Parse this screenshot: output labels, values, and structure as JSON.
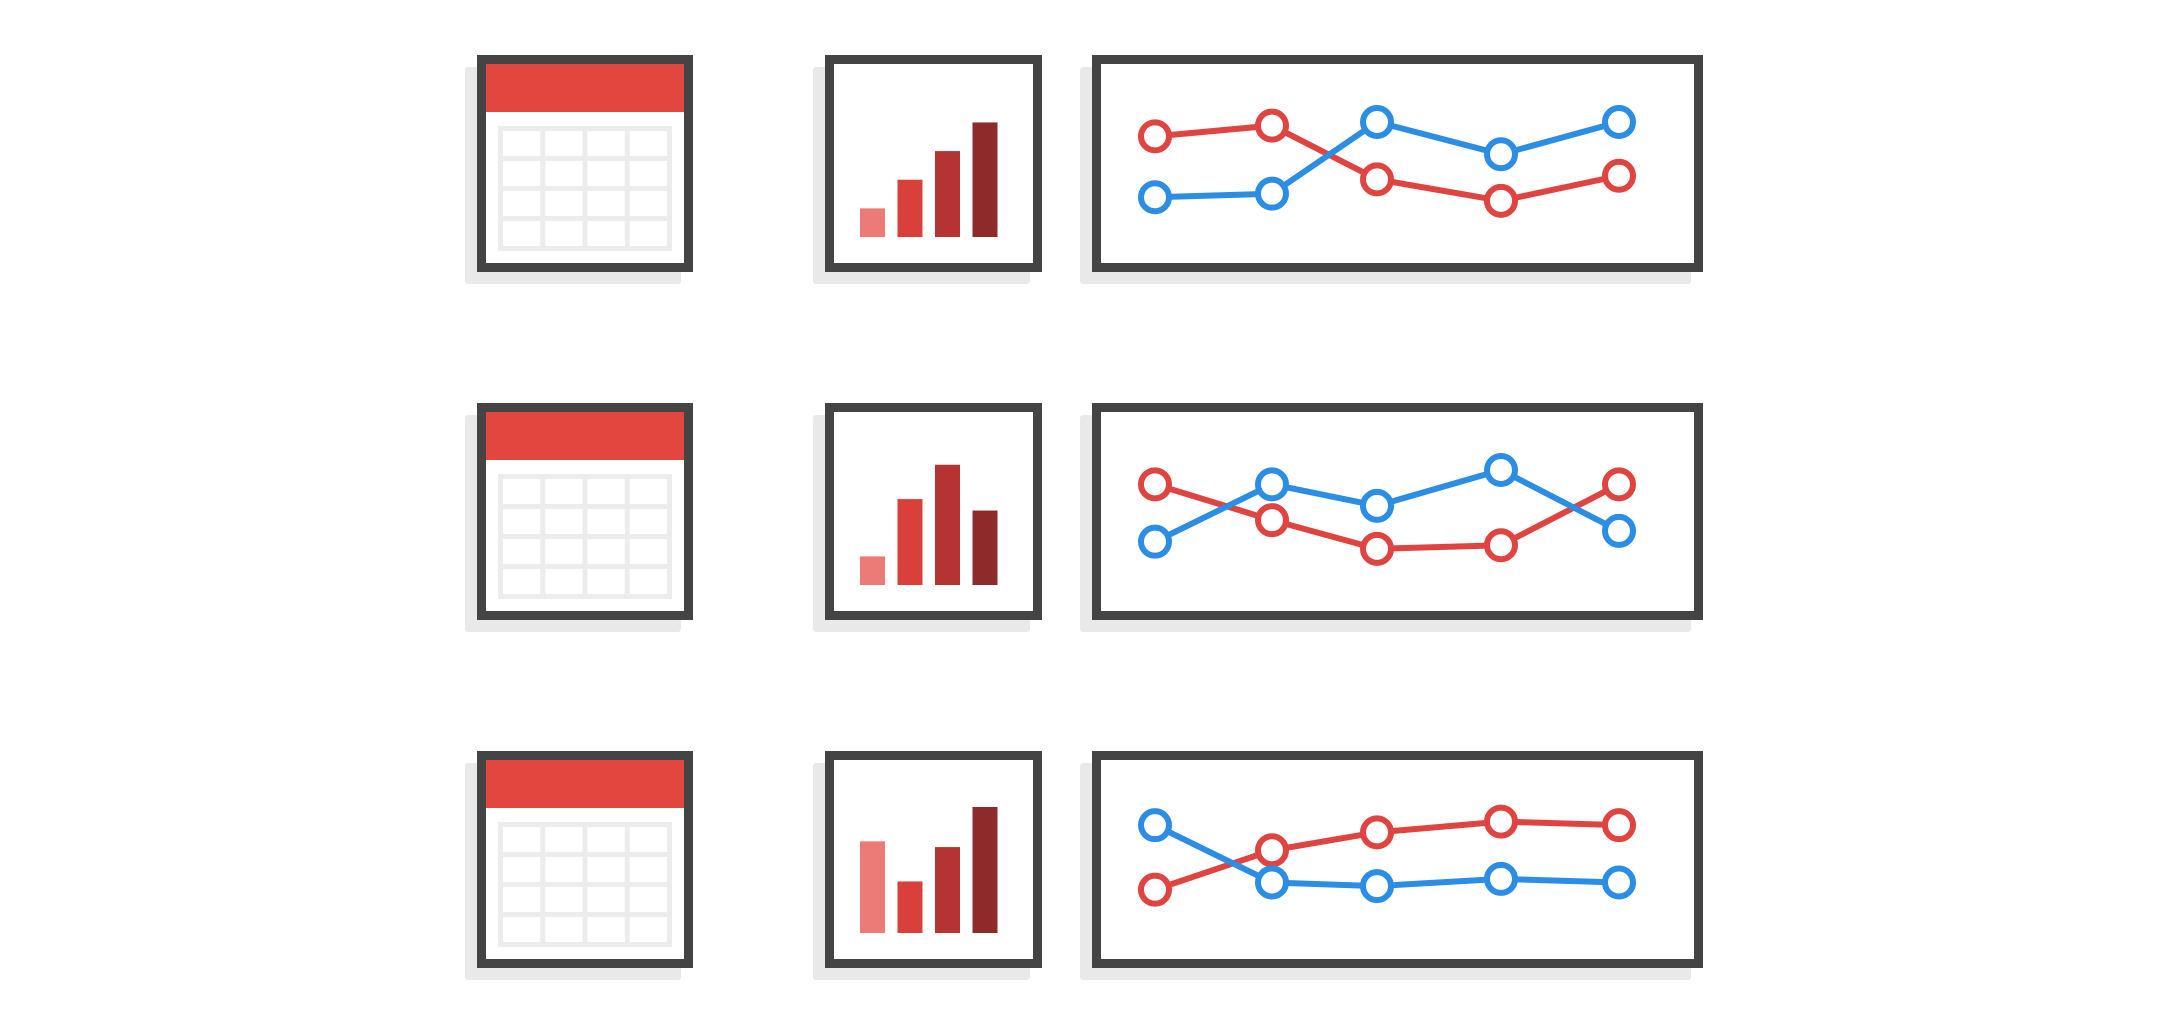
{
  "colors": {
    "frame": "#444444",
    "shadow": "#e9e9e9",
    "calendar_header": "#e2463f",
    "calendar_grid": "#ececec",
    "bar_shades": [
      "#ec7a77",
      "#d9403a",
      "#b53431",
      "#8d2a2a"
    ],
    "series_red": "#e04440",
    "series_blue": "#2b8de4"
  },
  "icons": {
    "calendar": "calendar-icon",
    "bar_chart": "bar-chart-icon",
    "line_chart": "line-chart-icon"
  },
  "calendar": {
    "columns": 4,
    "rows": 4
  },
  "rows": [
    {
      "bar_chart": {
        "type": "bar",
        "values": [
          1,
          2,
          3,
          4
        ]
      },
      "line_chart": {
        "type": "line",
        "series": [
          {
            "color": "red",
            "values": [
              2.0,
              2.3,
              0.8,
              0.2,
              0.9
            ]
          },
          {
            "color": "blue",
            "values": [
              0.3,
              0.4,
              2.4,
              1.5,
              2.4
            ]
          }
        ]
      }
    },
    {
      "bar_chart": {
        "type": "bar",
        "values": [
          1,
          3,
          4.2,
          2.6
        ]
      },
      "line_chart": {
        "type": "line",
        "series": [
          {
            "color": "red",
            "values": [
              2.0,
              1.0,
              0.2,
              0.3,
              2.0
            ]
          },
          {
            "color": "blue",
            "values": [
              0.4,
              2.0,
              1.4,
              2.4,
              0.7
            ]
          }
        ]
      }
    },
    {
      "bar_chart": {
        "type": "bar",
        "values": [
          3.2,
          1.8,
          3.0,
          4.4
        ]
      },
      "line_chart": {
        "type": "line",
        "series": [
          {
            "color": "red",
            "values": [
              0.4,
              1.5,
              2.0,
              2.3,
              2.2
            ]
          },
          {
            "color": "blue",
            "values": [
              2.2,
              0.6,
              0.5,
              0.7,
              0.6
            ]
          }
        ]
      }
    }
  ]
}
